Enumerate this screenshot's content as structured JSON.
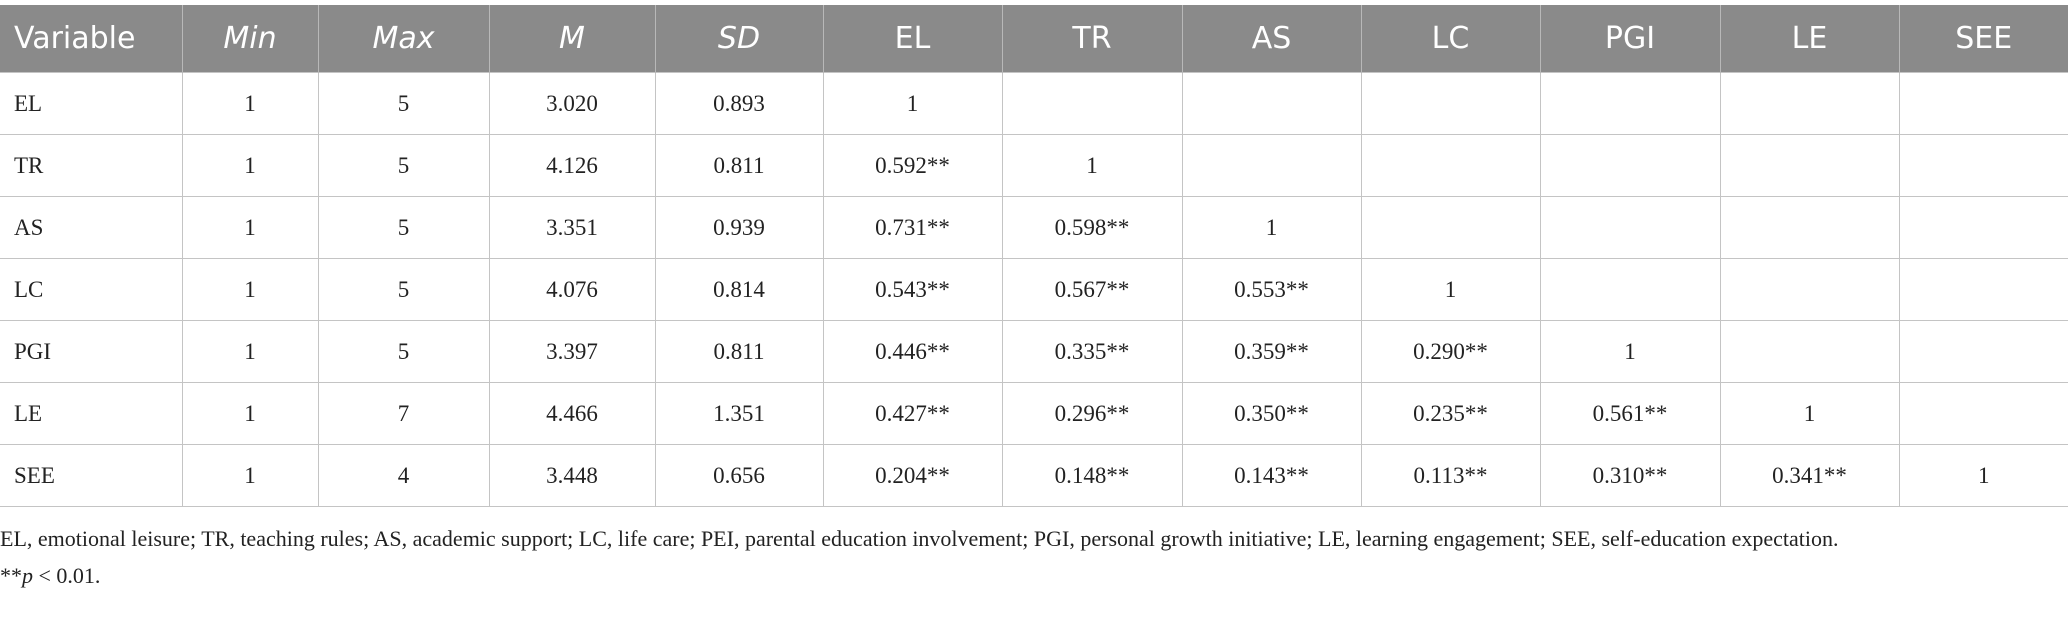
{
  "table": {
    "header": [
      "Variable",
      "Min",
      "Max",
      "M",
      "SD",
      "EL",
      "TR",
      "AS",
      "LC",
      "PGI",
      "LE",
      "SEE"
    ],
    "rows": [
      [
        "EL",
        "1",
        "5",
        "3.020",
        "0.893",
        "1"
      ],
      [
        "TR",
        "1",
        "5",
        "4.126",
        "0.811",
        "0.592**",
        "1"
      ],
      [
        "AS",
        "1",
        "5",
        "3.351",
        "0.939",
        "0.731**",
        "0.598**",
        "1"
      ],
      [
        "LC",
        "1",
        "5",
        "4.076",
        "0.814",
        "0.543**",
        "0.567**",
        "0.553**",
        "1"
      ],
      [
        "PGI",
        "1",
        "5",
        "3.397",
        "0.811",
        "0.446**",
        "0.335**",
        "0.359**",
        "0.290**",
        "1"
      ],
      [
        "LE",
        "1",
        "7",
        "4.466",
        "1.351",
        "0.427**",
        "0.296**",
        "0.350**",
        "0.235**",
        "0.561**",
        "1"
      ],
      [
        "SEE",
        "1",
        "4",
        "3.448",
        "0.656",
        "0.204**",
        "0.148**",
        "0.143**",
        "0.113**",
        "0.310**",
        "0.341**",
        "1"
      ]
    ]
  },
  "notes": {
    "abbreviations": "EL, emotional leisure; TR, teaching rules; AS, academic support; LC, life care; PEI, parental education involvement; PGI, personal growth initiative; LE, learning engagement; SEE, self-education expectation.",
    "significance": [
      "**",
      "p",
      " < 0.01."
    ]
  }
}
